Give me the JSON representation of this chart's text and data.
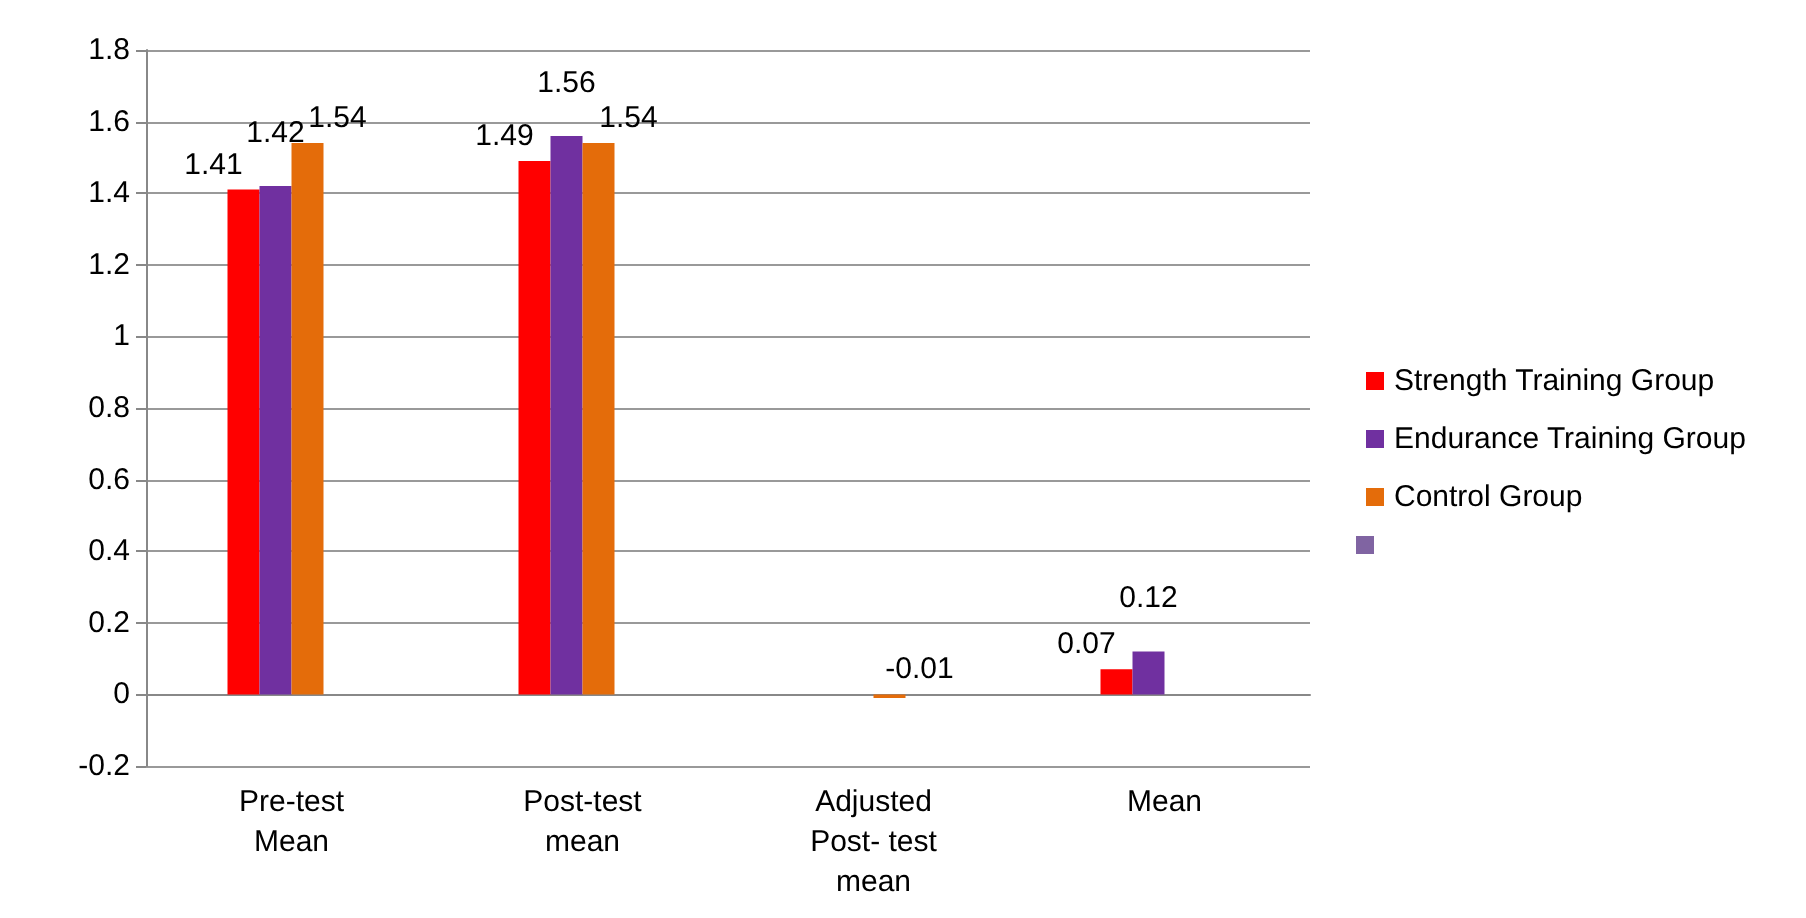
{
  "chart_data": {
    "type": "bar",
    "categories": [
      "Pre-test\nMean",
      "Post-test\nmean",
      "Adjusted\nPost- test\nmean",
      "Mean"
    ],
    "series": [
      {
        "name": "Strength Training Group",
        "color": "#ff0000",
        "values": [
          1.41,
          1.49,
          null,
          0.07
        ],
        "value_labels": [
          "1.41",
          "1.49",
          null,
          "0.07"
        ]
      },
      {
        "name": "Endurance Training Group",
        "color": "#7030a0",
        "values": [
          1.42,
          1.56,
          null,
          0.12
        ],
        "value_labels": [
          "1.42",
          "1.56",
          null,
          "0.12"
        ]
      },
      {
        "name": "Control Group",
        "color": "#e46c0a",
        "values": [
          1.54,
          1.54,
          -0.01,
          null
        ],
        "value_labels": [
          "1.54",
          "1.54",
          "-0.01",
          null
        ]
      },
      {
        "color": "#8064a2",
        "values": [
          null,
          null,
          null,
          null
        ]
      }
    ],
    "ylim": [
      -0.2,
      1.8
    ],
    "yticks": [
      -0.2,
      0,
      0.2,
      0.4,
      0.6,
      0.8,
      1,
      1.2,
      1.4,
      1.6,
      1.8
    ],
    "grid": "y",
    "legend": "right"
  }
}
